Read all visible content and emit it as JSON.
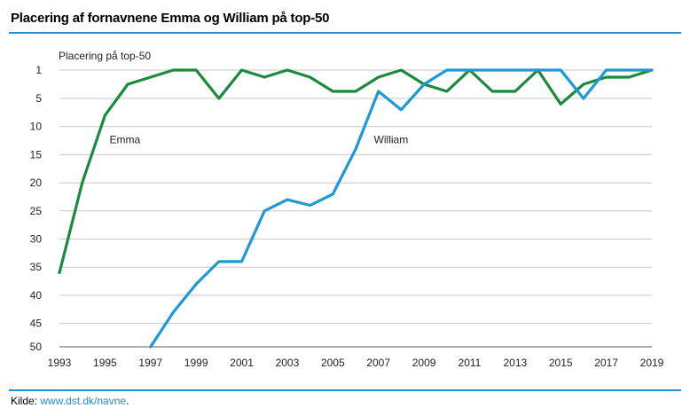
{
  "header": {
    "title": "Placering af fornavnene Emma og William på top-50"
  },
  "footer": {
    "source_label": "Kilde: ",
    "source_link": "www.dst.dk/navne",
    "source_end": "."
  },
  "chart_data": {
    "type": "line",
    "title": "Placering af fornavnene Emma og William på top-50",
    "ylabel": "Placering på top-50",
    "xlabel": "",
    "y_reversed": true,
    "y_ticks": [
      "1",
      "5",
      "10",
      "15",
      "20",
      "25",
      "30",
      "35",
      "40",
      "45",
      "50"
    ],
    "x_ticks": [
      "1993",
      "1995",
      "1997",
      "1999",
      "2001",
      "2003",
      "2005",
      "2007",
      "2009",
      "2011",
      "2013",
      "2015",
      "2017",
      "2019"
    ],
    "xlim": [
      1993,
      2019
    ],
    "grid": true,
    "series": [
      {
        "name": "Emma",
        "color": "#1a8a3e",
        "label_year": 1995.2,
        "label_rank": 13,
        "points": [
          [
            1993,
            36
          ],
          [
            1994,
            20
          ],
          [
            1995,
            8
          ],
          [
            1996,
            3
          ],
          [
            1997,
            2
          ],
          [
            1998,
            1
          ],
          [
            1999,
            1
          ],
          [
            2000,
            5
          ],
          [
            2001,
            1
          ],
          [
            2002,
            2
          ],
          [
            2003,
            1
          ],
          [
            2004,
            2
          ],
          [
            2005,
            4
          ],
          [
            2006,
            4
          ],
          [
            2007,
            2
          ],
          [
            2008,
            1
          ],
          [
            2009,
            3
          ],
          [
            2010,
            4
          ],
          [
            2011,
            1
          ],
          [
            2012,
            4
          ],
          [
            2013,
            4
          ],
          [
            2014,
            1
          ],
          [
            2015,
            6
          ],
          [
            2016,
            3
          ],
          [
            2017,
            2
          ],
          [
            2018,
            2
          ],
          [
            2019,
            1
          ]
        ]
      },
      {
        "name": "William",
        "color": "#1d9ad6",
        "label_year": 2006.8,
        "label_rank": 13,
        "points": [
          [
            1997,
            50
          ],
          [
            1998,
            43
          ],
          [
            1999,
            38
          ],
          [
            2000,
            34
          ],
          [
            2001,
            34
          ],
          [
            2002,
            25
          ],
          [
            2003,
            23
          ],
          [
            2004,
            24
          ],
          [
            2005,
            22
          ],
          [
            2006,
            14
          ],
          [
            2007,
            4
          ],
          [
            2008,
            7
          ],
          [
            2009,
            3
          ],
          [
            2010,
            1
          ],
          [
            2011,
            1
          ],
          [
            2012,
            1
          ],
          [
            2013,
            1
          ],
          [
            2014,
            1
          ],
          [
            2015,
            1
          ],
          [
            2016,
            5
          ],
          [
            2017,
            1
          ],
          [
            2018,
            1
          ],
          [
            2019,
            1
          ]
        ]
      }
    ]
  }
}
